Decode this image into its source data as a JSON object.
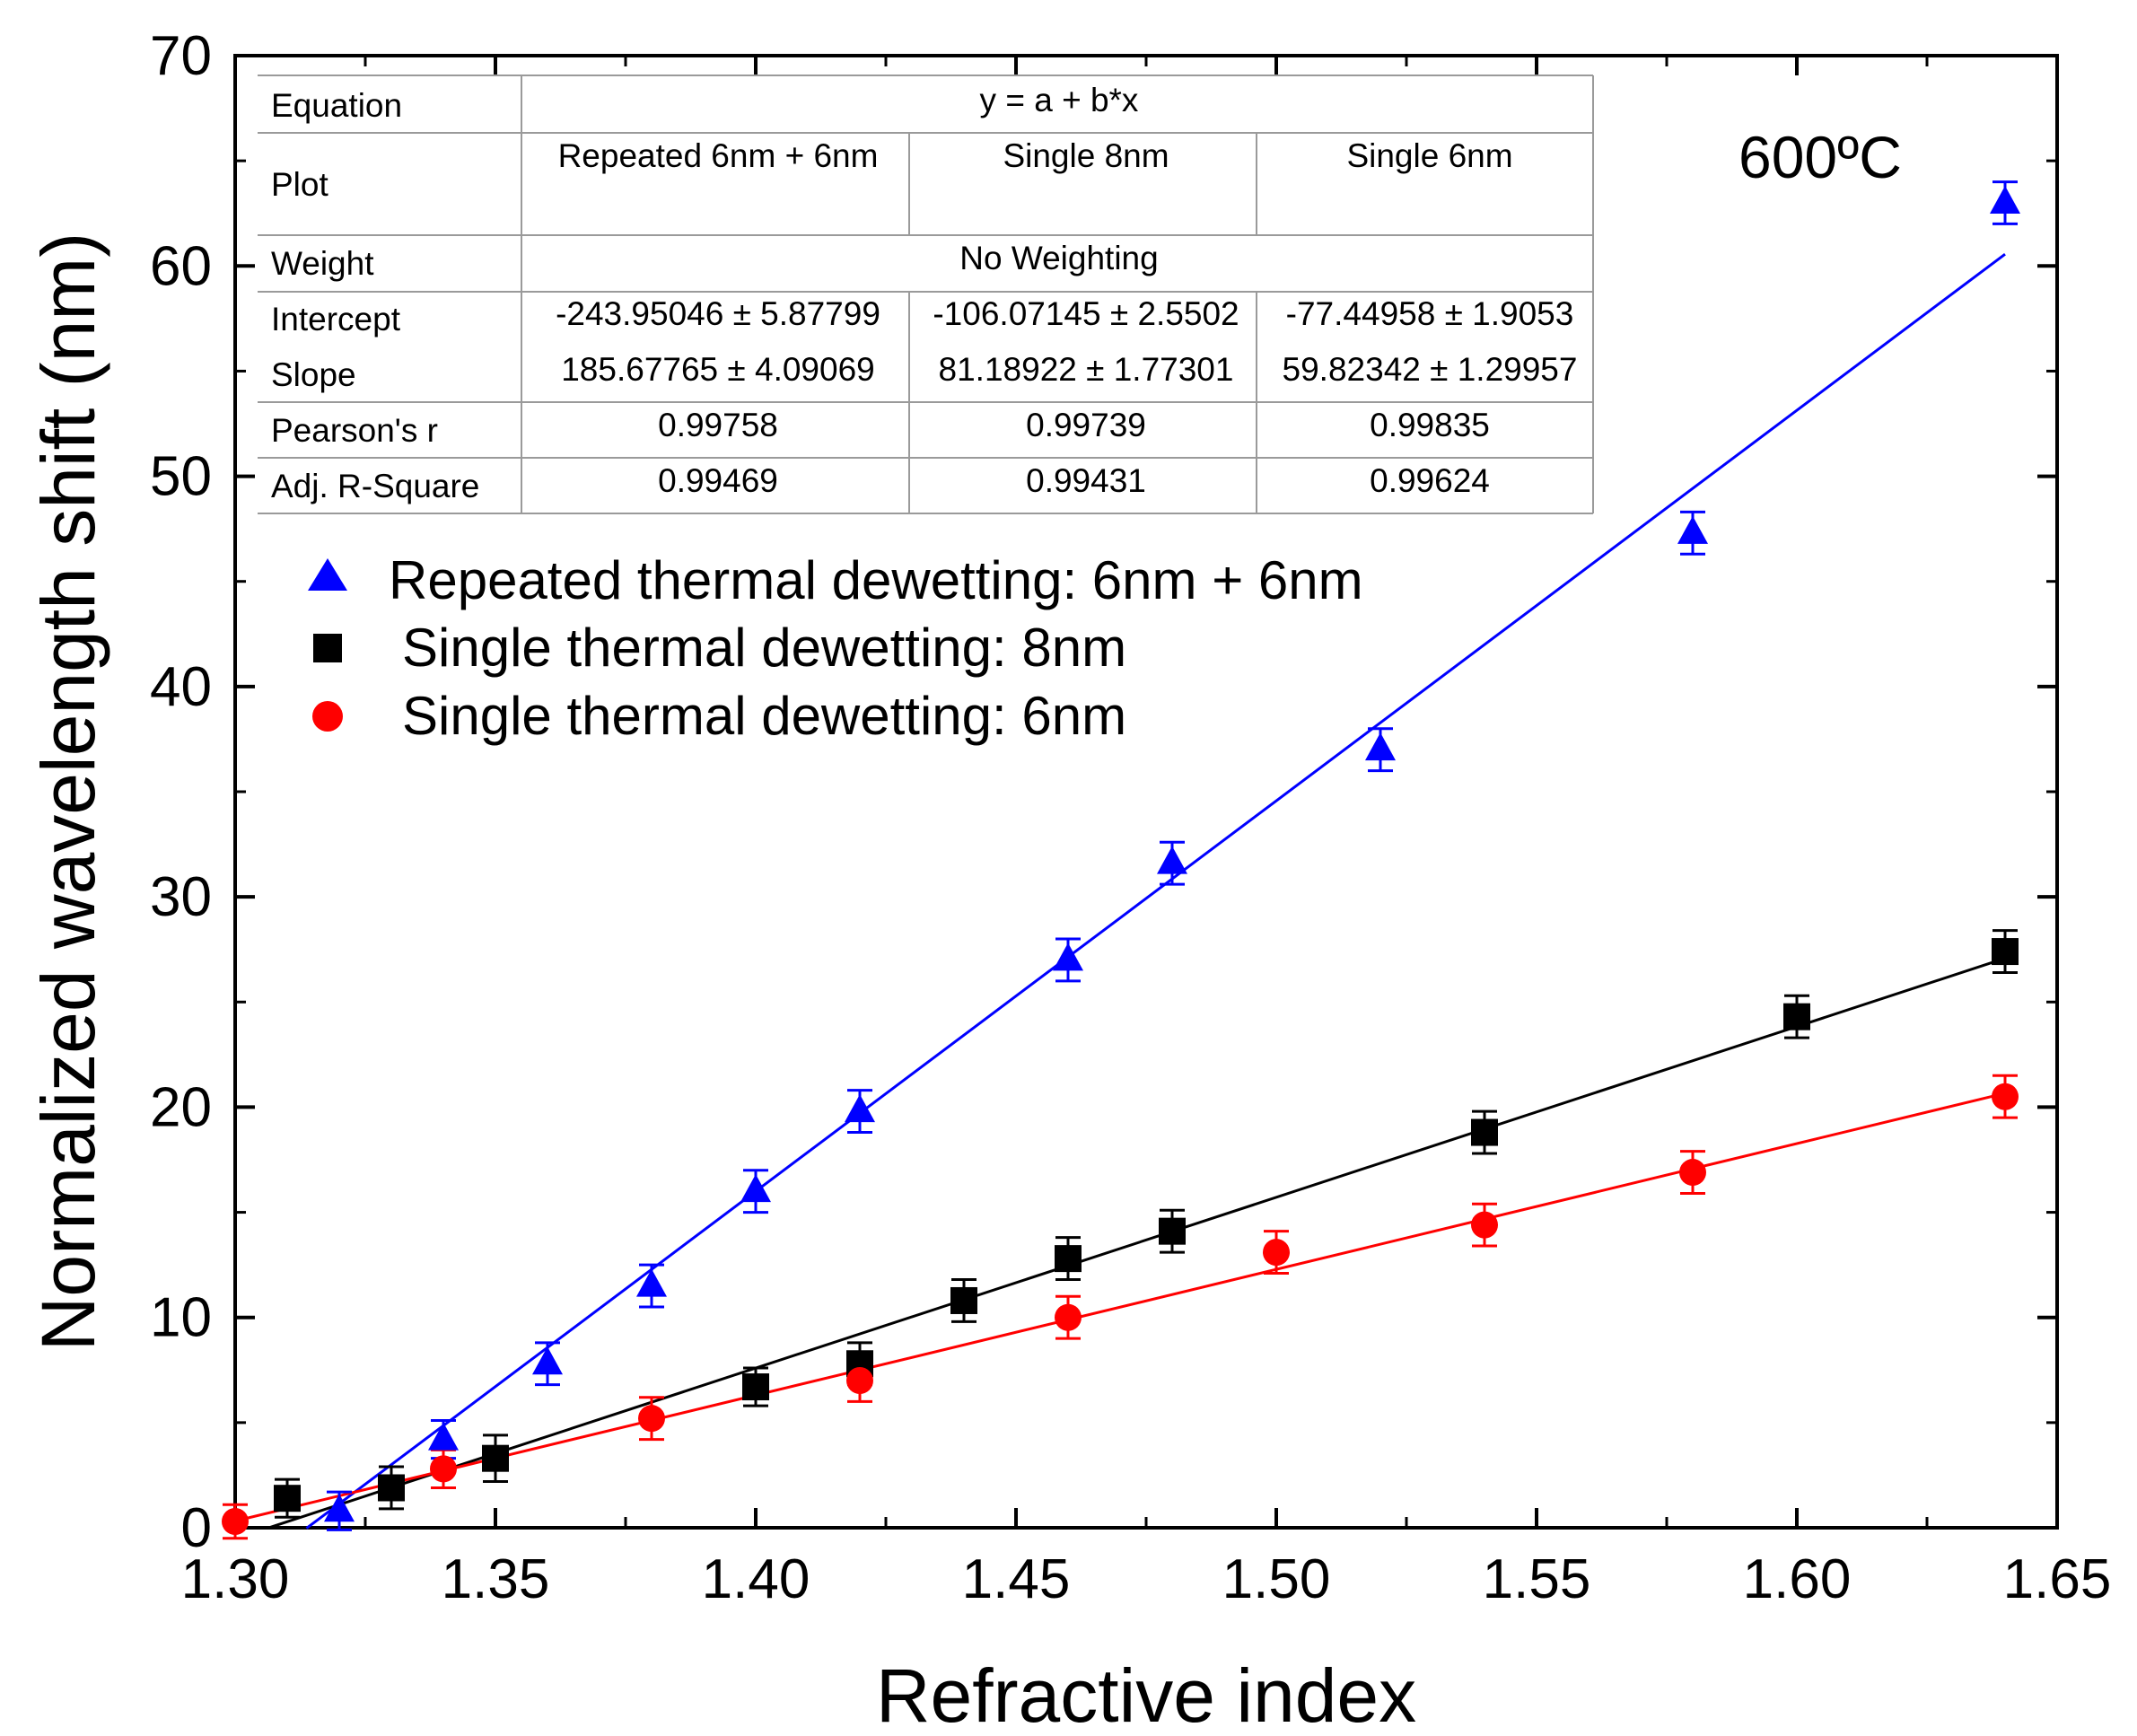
{
  "chart_data": {
    "type": "scatter",
    "title": "",
    "xlabel": "Refractive index",
    "ylabel": "Normalized wavelength shift (nm)",
    "xlim": [
      1.3,
      1.65
    ],
    "ylim": [
      0,
      70
    ],
    "x_ticks": [
      "1.30",
      "1.35",
      "1.40",
      "1.45",
      "1.50",
      "1.55",
      "1.60",
      "1.65"
    ],
    "y_ticks": [
      "0",
      "10",
      "20",
      "30",
      "40",
      "50",
      "60",
      "70"
    ],
    "annotation": "600ºC",
    "legend_position": "upper-left",
    "series": [
      {
        "name": "Repeated thermal dewetting: 6nm + 6nm",
        "marker": "triangle",
        "color": "#0000ff",
        "x": [
          1.32,
          1.34,
          1.36,
          1.38,
          1.4,
          1.42,
          1.46,
          1.48,
          1.52,
          1.58,
          1.64
        ],
        "y": [
          0.8,
          4.2,
          7.8,
          11.5,
          16.0,
          19.8,
          27.0,
          31.6,
          37.0,
          47.3,
          63.0
        ],
        "err": [
          0.9,
          0.9,
          1.0,
          1.0,
          1.0,
          1.0,
          1.0,
          1.0,
          1.0,
          1.0,
          1.0
        ],
        "fit": {
          "intercept": -243.95046,
          "slope": 185.67765,
          "x_range": [
            1.3137,
            1.64
          ]
        }
      },
      {
        "name": "Single thermal dewetting: 8nm",
        "marker": "square",
        "color": "#000000",
        "x": [
          1.31,
          1.33,
          1.35,
          1.4,
          1.42,
          1.44,
          1.46,
          1.48,
          1.54,
          1.6,
          1.64
        ],
        "y": [
          1.4,
          1.9,
          3.3,
          6.7,
          7.8,
          10.8,
          12.8,
          14.1,
          18.8,
          24.3,
          27.4
        ],
        "err": [
          0.9,
          1.0,
          1.1,
          0.9,
          1.0,
          1.0,
          1.0,
          1.0,
          1.0,
          1.0,
          1.0
        ],
        "fit": {
          "intercept": -106.07145,
          "slope": 81.18922,
          "x_range": [
            1.3065,
            1.64
          ]
        }
      },
      {
        "name": "Single thermal dewetting: 6nm",
        "marker": "circle",
        "color": "#ff0000",
        "x": [
          1.3,
          1.34,
          1.38,
          1.42,
          1.46,
          1.5,
          1.54,
          1.58,
          1.64
        ],
        "y": [
          0.3,
          2.8,
          5.2,
          7.0,
          10.0,
          13.1,
          14.4,
          16.9,
          20.5
        ],
        "err": [
          0.8,
          0.9,
          1.0,
          1.0,
          1.0,
          1.0,
          1.0,
          1.0,
          1.0
        ],
        "fit": {
          "intercept": -77.44958,
          "slope": 59.82342,
          "x_range": [
            1.3,
            1.64
          ]
        }
      }
    ]
  },
  "fit_table": {
    "row_labels": {
      "equation": "Equation",
      "plot": "Plot",
      "weight": "Weight",
      "intercept": "Intercept",
      "slope": "Slope",
      "pearson": "Pearson's r",
      "adj_r2": "Adj. R-Square"
    },
    "equation": "y = a + b*x",
    "weight": "No Weighting",
    "plots": [
      "Repeated 6nm + 6nm",
      "Single 8nm",
      "Single 6nm"
    ],
    "intercepts": [
      "-243.95046 ± 5.87799",
      "-106.07145 ± 2.5502",
      "-77.44958 ± 1.9053"
    ],
    "slopes": [
      "185.67765 ± 4.09069",
      "81.18922 ± 1.77301",
      "59.82342 ± 1.29957"
    ],
    "pearsons_r": [
      "0.99758",
      "0.99739",
      "0.99835"
    ],
    "adj_r_square": [
      "0.99469",
      "0.99431",
      "0.99624"
    ]
  }
}
